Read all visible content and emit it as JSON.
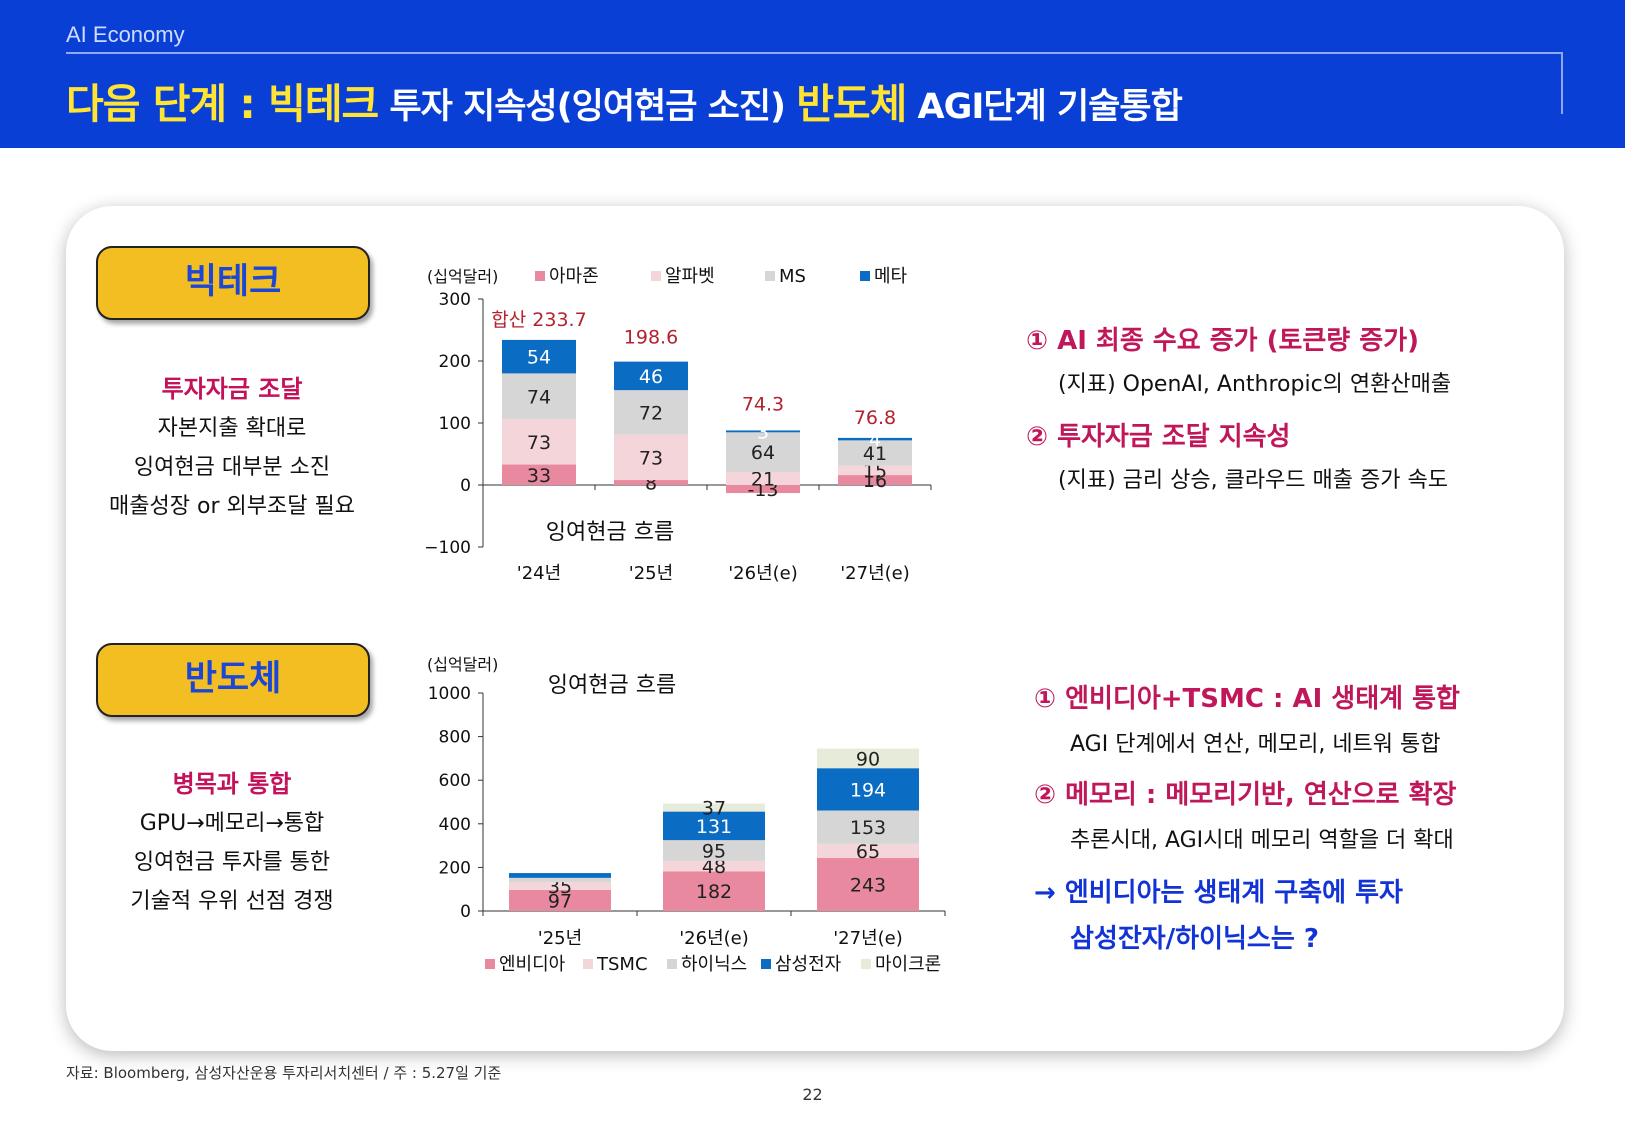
{
  "header": {
    "subtitle": "AI Economy",
    "title_part1": "다음 단계 : 빅테크",
    "title_part2": " 투자 지속성(잉여현금 소진) ",
    "title_part3": "반도체",
    "title_part4": " AGI단계 기술통합"
  },
  "bigtech": {
    "label": "빅테크",
    "heading": "투자자금 조달",
    "lines": [
      "자본지출 확대로",
      "잉여현금 대부분 소진",
      "매출성장 or 외부조달 필요"
    ]
  },
  "semi": {
    "label": "반도체",
    "heading": "병목과 통합",
    "lines": [
      "GPU→메모리→통합",
      "잉여현금 투자를 통한",
      "기술적 우위 선점 경쟁"
    ]
  },
  "colors": {
    "header_bg": "#0a3fd6",
    "title_yellow": "#ffe433",
    "pill_bg": "#f2be22",
    "accent_magenta": "#c0175a",
    "accent_blue": "#1233d6",
    "amazon": "#e8899f",
    "alphabet": "#f4d6da",
    "ms": "#d6d6d6",
    "meta": "#0a6cc3",
    "micron": "#e7ecda"
  },
  "chart_data": [
    {
      "type": "bar",
      "stacked": true,
      "title": "잉여현금 흐름",
      "unit_label": "(십억달러)",
      "categories": [
        "'24년",
        "'25년",
        "'26년(e)",
        "'27년(e)"
      ],
      "ylim": [
        -100,
        300
      ],
      "yticks": [
        -100,
        0,
        100,
        200,
        300
      ],
      "legend_position": "top",
      "series": [
        {
          "name": "아마존",
          "values": [
            33,
            8,
            -13,
            16
          ],
          "labels": [
            "33",
            "8",
            "-13",
            "16"
          ]
        },
        {
          "name": "알파벳",
          "values": [
            73,
            73,
            21,
            15
          ],
          "labels": [
            "73",
            "73",
            "21",
            "15"
          ]
        },
        {
          "name": "MS",
          "values": [
            74,
            72,
            64,
            41
          ],
          "labels": [
            "74",
            "72",
            "64",
            "41"
          ]
        },
        {
          "name": "메타",
          "values": [
            54,
            46,
            3,
            4
          ],
          "labels": [
            "54",
            "46",
            "3",
            "4"
          ]
        }
      ],
      "totals": [
        "합산 233.7",
        "198.6",
        "74.3",
        "76.8"
      ]
    },
    {
      "type": "bar",
      "stacked": true,
      "title": "잉여현금 흐름",
      "unit_label": "(십억달러)",
      "categories": [
        "'25년",
        "'26년(e)",
        "'27년(e)"
      ],
      "ylim": [
        0,
        1000
      ],
      "yticks": [
        0,
        200,
        400,
        600,
        800,
        1000
      ],
      "legend_position": "bottom",
      "series": [
        {
          "name": "엔비디아",
          "values": [
            97,
            182,
            243
          ],
          "labels": [
            "97",
            "182",
            "243"
          ]
        },
        {
          "name": "TSMC",
          "values": [
            35,
            48,
            65
          ],
          "labels": [
            "35",
            "48",
            "65"
          ]
        },
        {
          "name": "하이닉스",
          "values": [
            20,
            95,
            153
          ],
          "labels": [
            "",
            "95",
            "153"
          ]
        },
        {
          "name": "삼성전자",
          "values": [
            22,
            131,
            194
          ],
          "labels": [
            "",
            "131",
            "194"
          ]
        },
        {
          "name": "마이크론",
          "values": [
            0,
            37,
            90
          ],
          "labels": [
            "",
            "37",
            "90"
          ]
        }
      ]
    }
  ],
  "right_top": {
    "item1_title": "① AI 최종 수요 증가 (토큰량 증가)",
    "item1_desc": "(지표) OpenAI, Anthropic의 연환산매출",
    "item2_title": "② 투자자금 조달 지속성",
    "item2_desc": "(지표) 금리 상승, 클라우드 매출 증가 속도"
  },
  "right_bottom": {
    "item1_title": "① 엔비디아+TSMC : AI 생태계 통합",
    "item1_desc": "AGI 단계에서 연산, 메모리, 네트워 통합",
    "item2_title": "② 메모리 : 메모리기반, 연산으로 확장",
    "item2_desc": "추론시대, AGI시대 메모리 역할을 더 확대",
    "conclusion_line1": "→ 엔비디아는 생태계 구축에 투자",
    "conclusion_line2": "삼성잔자/하이닉스는 ?"
  },
  "footer": {
    "source": "자료: Bloomberg, 삼성자산운용 투자리서치센터 / 주 : 5.27일 기준",
    "page": "22"
  }
}
